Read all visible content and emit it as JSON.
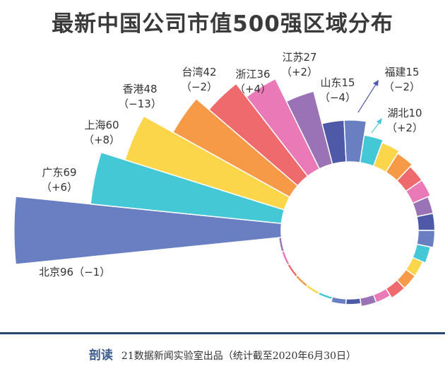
{
  "chart_data": {
    "type": "polar-bar",
    "title": "最新中国公司市值500强区域分布",
    "categories": [
      "北京",
      "广东",
      "上海",
      "香港",
      "台湾",
      "浙江",
      "江苏",
      "山东",
      "福建",
      "湖北"
    ],
    "values": [
      96,
      69,
      60,
      48,
      42,
      36,
      27,
      15,
      15,
      10
    ],
    "changes": [
      "−1",
      "+6",
      "+8",
      "−13",
      "−2",
      "+4",
      "+2",
      "−4",
      "−2",
      "+2"
    ],
    "labels": [
      "北京96（−1）",
      "广东69",
      "（+6）",
      "上海60",
      "（+8）",
      "香港48",
      "（−13）",
      "台湾42",
      "（−2）",
      "浙江36",
      "（+4）",
      "江苏27",
      "（+2）",
      "山东15",
      "（−4）",
      "福建15",
      "（−2）",
      "湖北10",
      "（+2）"
    ],
    "other_values": [
      9,
      8,
      7,
      7,
      6,
      6,
      6,
      5,
      4,
      4,
      4,
      3,
      3,
      2,
      2,
      1,
      1,
      1,
      1,
      1,
      1
    ],
    "colors": [
      "#6a7fc1",
      "#45c8d6",
      "#fbd54a",
      "#f79a48",
      "#ee6a6c",
      "#ea79b8",
      "#9a72b6",
      "#4e5aa8"
    ]
  },
  "footer": {
    "logo": "剖读",
    "text": "21数据新闻实验室出品（统计截至2020年6月30日）"
  }
}
